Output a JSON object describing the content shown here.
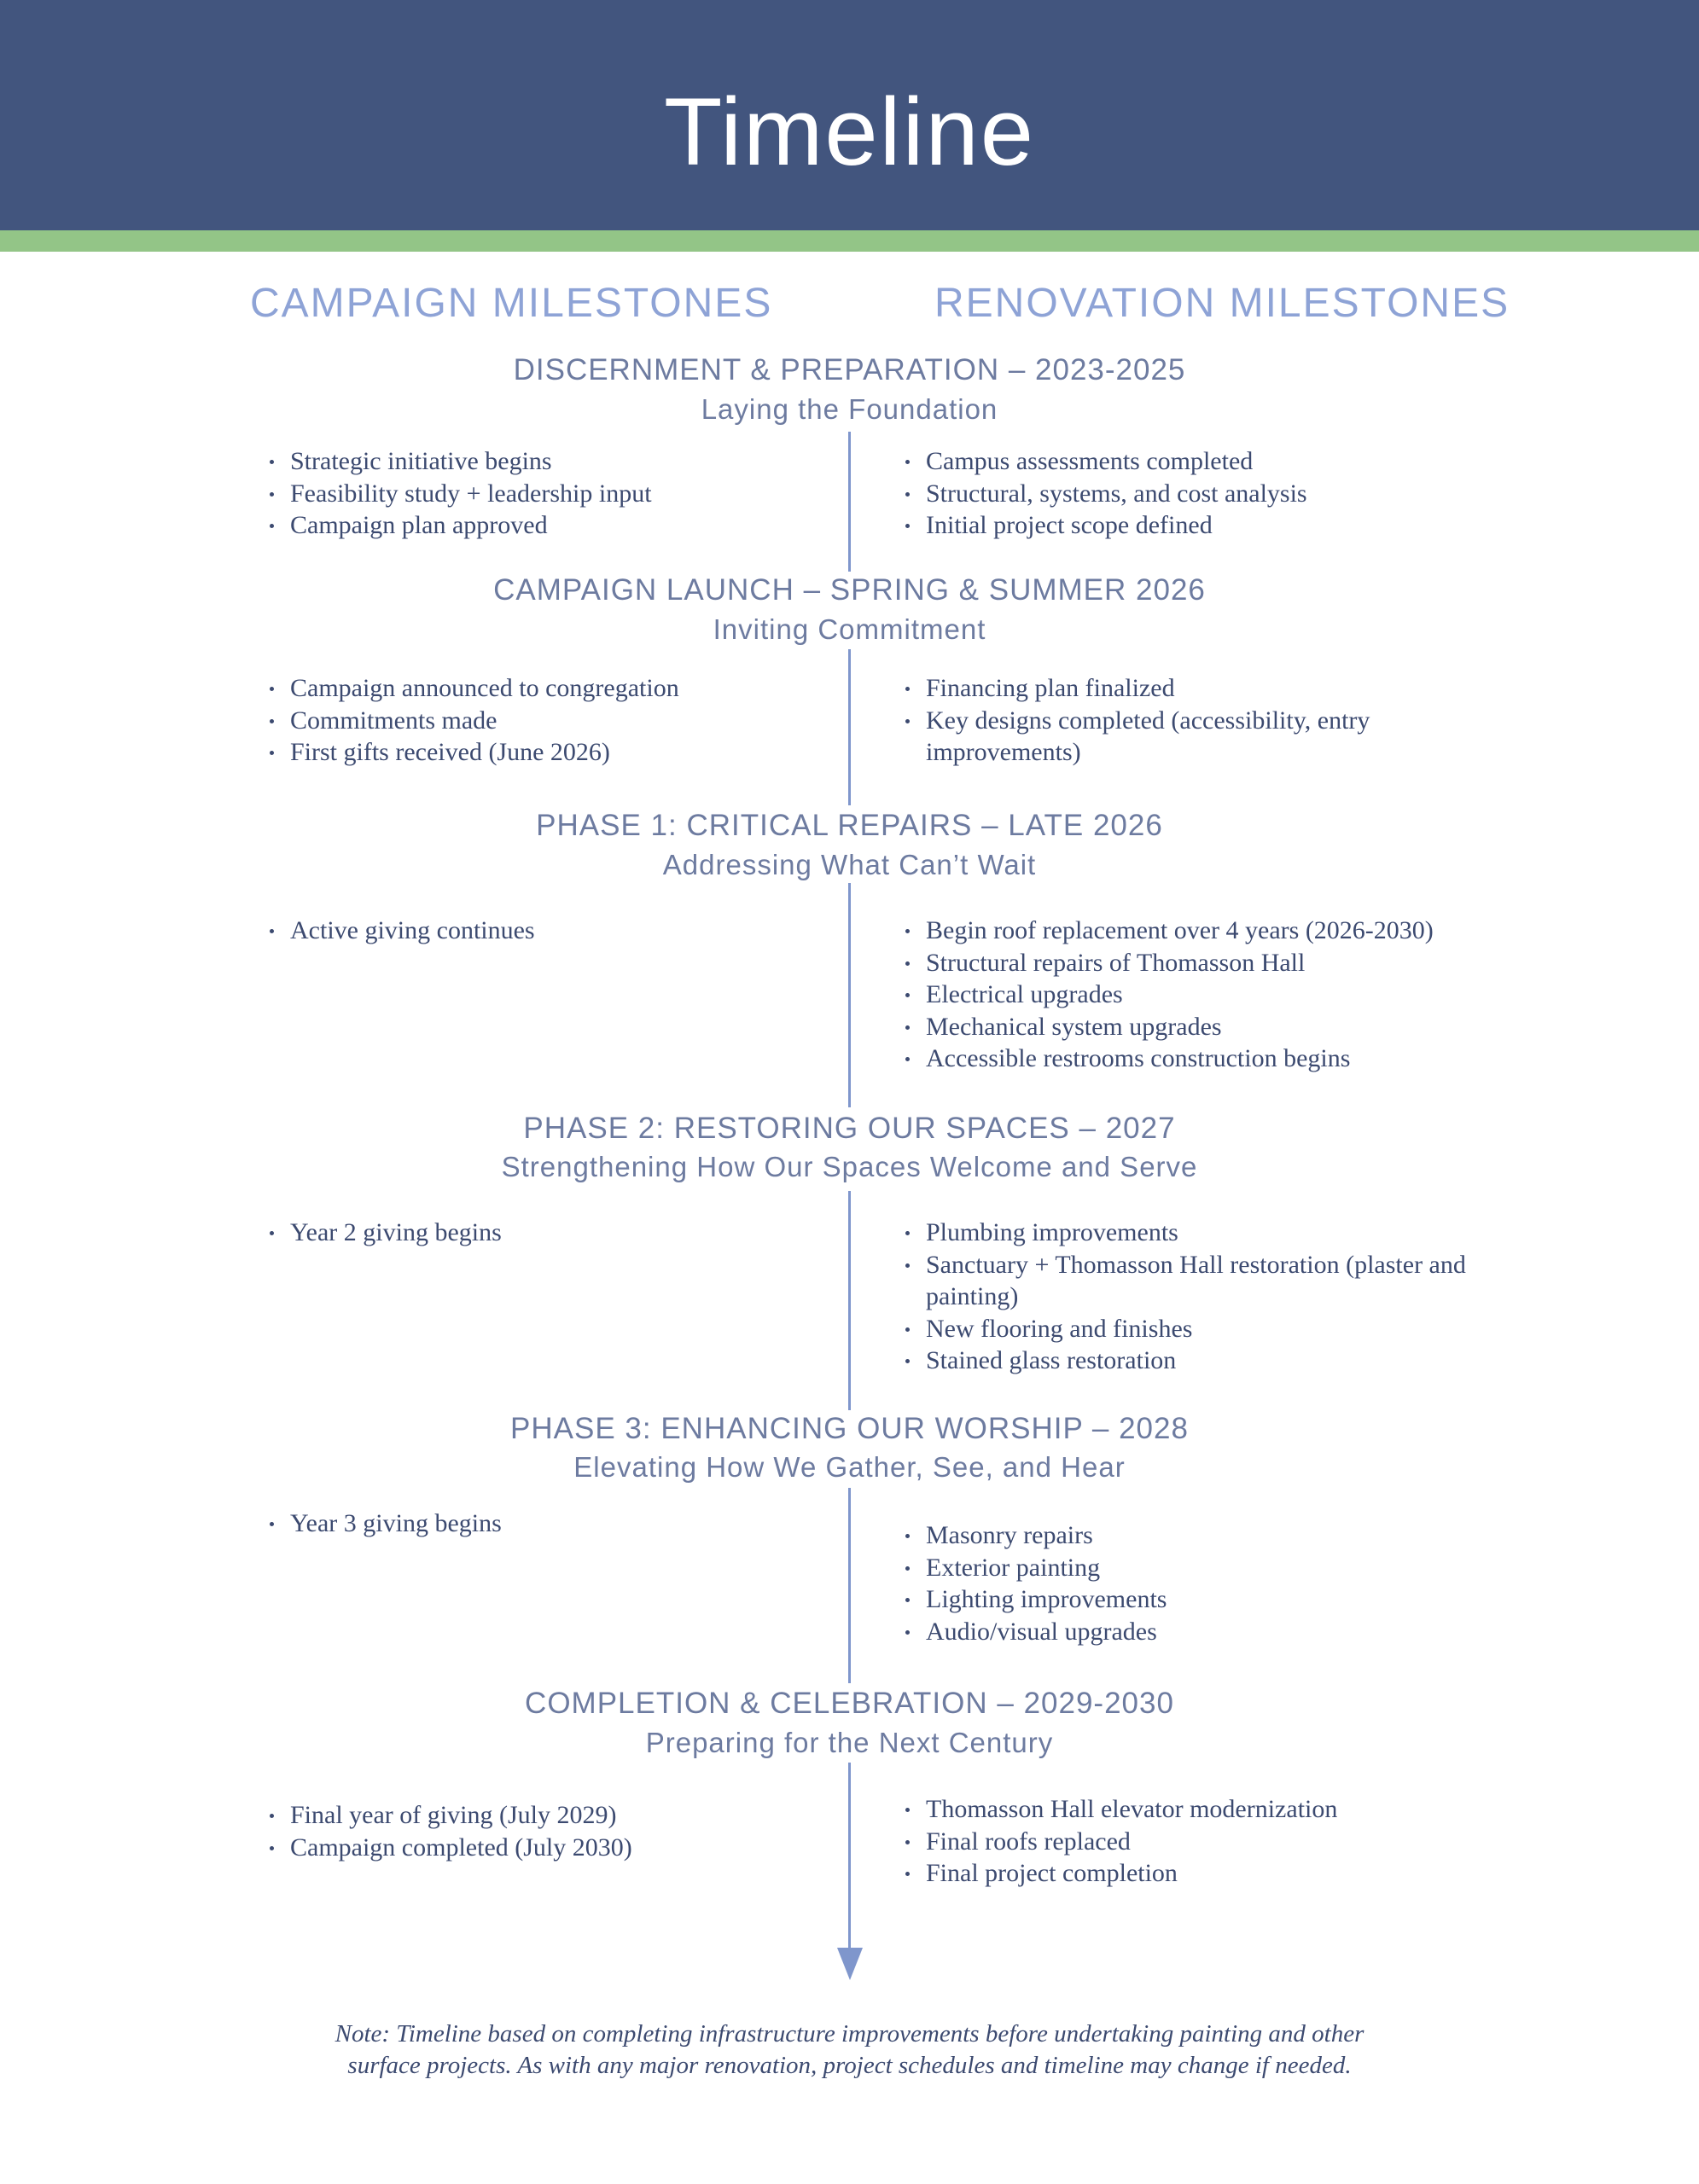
{
  "header": {
    "title": "Timeline"
  },
  "columns": {
    "campaign": "CAMPAIGN MILESTONES",
    "renovation": "RENOVATION MILESTONES"
  },
  "colors": {
    "header": "#42557e",
    "accent_band": "#93c587",
    "timeline_line": "#7f96cc",
    "heading": "#8ea3d6",
    "text": "#3c4a70"
  },
  "phases": [
    {
      "title": "DISCERNMENT & PREPARATION – 2023-2025",
      "subtitle": "Laying the Foundation",
      "campaign": [
        "Strategic initiative begins",
        "Feasibility study + leadership input",
        "Campaign plan approved"
      ],
      "renovation": [
        "Campus assessments completed",
        "Structural, systems, and cost analysis",
        "Initial project scope defined"
      ]
    },
    {
      "title": "CAMPAIGN LAUNCH – SPRING & SUMMER 2026",
      "subtitle": "Inviting Commitment",
      "campaign": [
        "Campaign announced to congregation",
        "Commitments made",
        "First gifts received (June 2026)"
      ],
      "renovation": [
        "Financing plan finalized",
        "Key designs completed (accessibility, entry improvements)"
      ]
    },
    {
      "title": "PHASE 1: CRITICAL REPAIRS – LATE 2026",
      "subtitle": "Addressing What Can’t Wait",
      "campaign": [
        "Active giving continues"
      ],
      "renovation": [
        "Begin roof replacement over 4 years (2026-2030)",
        "Structural repairs of Thomasson Hall",
        "Electrical upgrades",
        "Mechanical system upgrades",
        "Accessible restrooms construction begins"
      ]
    },
    {
      "title": "PHASE 2: RESTORING OUR SPACES – 2027",
      "subtitle": "Strengthening How Our Spaces Welcome and Serve",
      "campaign": [
        "Year 2 giving begins"
      ],
      "renovation": [
        "Plumbing improvements",
        "Sanctuary + Thomasson Hall restoration (plaster and painting)",
        "New flooring and finishes",
        "Stained glass restoration"
      ]
    },
    {
      "title": "PHASE 3: ENHANCING OUR WORSHIP – 2028",
      "subtitle": "Elevating How We Gather, See, and Hear",
      "campaign": [
        "Year 3 giving begins"
      ],
      "renovation": [
        "Masonry repairs",
        "Exterior painting",
        "Lighting improvements",
        "Audio/visual upgrades"
      ]
    },
    {
      "title": "COMPLETION & CELEBRATION – 2029-2030",
      "subtitle": "Preparing for the Next Century",
      "campaign": [
        "Final year of giving (July 2029)",
        "Campaign completed (July 2030)"
      ],
      "renovation": [
        "Thomasson Hall elevator modernization",
        "Final roofs replaced",
        "Final project completion"
      ]
    }
  ],
  "note": "Note: Timeline based on completing infrastructure improvements before undertaking painting and other surface projects. As with any major renovation, project schedules and timeline may change if needed."
}
